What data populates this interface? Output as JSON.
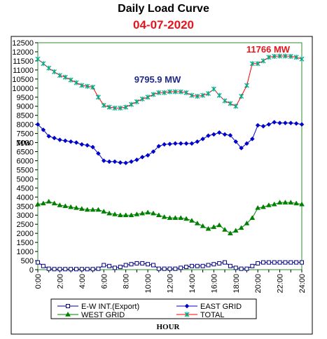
{
  "title": "Daily Load Curve",
  "subtitle": "04-07-2020",
  "chart_data": {
    "type": "line",
    "title": "Daily Load Curve",
    "subtitle": "04-07-2020",
    "xlabel": "HOUR",
    "ylabel": "MW",
    "xlim": [
      0,
      24
    ],
    "ylim": [
      0,
      12500
    ],
    "y_ticks": [
      0,
      500,
      1000,
      1500,
      2000,
      2500,
      3000,
      3500,
      4000,
      4500,
      5000,
      5500,
      6000,
      6500,
      7000,
      7500,
      8000,
      8500,
      9000,
      9500,
      10000,
      10500,
      11000,
      11500,
      12000,
      12500
    ],
    "x_ticks": [
      "0:00",
      "2:00",
      "4:00",
      "6:00",
      "8:00",
      "10:00",
      "12:00",
      "14:00",
      "16:00",
      "18:00",
      "20:00",
      "22:00",
      "24:00"
    ],
    "grid": false,
    "legend": "bottom",
    "x": [
      0,
      0.5,
      1,
      1.5,
      2,
      2.5,
      3,
      3.5,
      4,
      4.5,
      5,
      5.5,
      6,
      6.5,
      7,
      7.5,
      8,
      8.5,
      9,
      9.5,
      10,
      10.5,
      11,
      11.5,
      12,
      12.5,
      13,
      13.5,
      14,
      14.5,
      15,
      15.5,
      16,
      16.5,
      17,
      17.5,
      18,
      18.5,
      19,
      19.5,
      20,
      20.5,
      21,
      21.5,
      22,
      22.5,
      23,
      23.5,
      24
    ],
    "series": [
      {
        "name": "E-W INT.(Export)",
        "color": "#000080",
        "marker": "square",
        "values": [
          400,
          200,
          50,
          30,
          30,
          30,
          30,
          30,
          30,
          30,
          30,
          50,
          250,
          200,
          100,
          150,
          250,
          300,
          350,
          350,
          300,
          250,
          50,
          50,
          50,
          50,
          100,
          150,
          200,
          200,
          200,
          250,
          300,
          350,
          400,
          200,
          100,
          50,
          50,
          200,
          350,
          400,
          400,
          400,
          400,
          400,
          400,
          400,
          400
        ]
      },
      {
        "name": "EAST GRID",
        "color": "#0000cc",
        "marker": "diamond",
        "values": [
          8000,
          7700,
          7350,
          7250,
          7150,
          7100,
          7050,
          7000,
          6900,
          6850,
          6750,
          6400,
          6000,
          5950,
          5950,
          5900,
          5880,
          5950,
          6050,
          6200,
          6300,
          6500,
          6800,
          6900,
          6920,
          6950,
          6950,
          6950,
          6950,
          7050,
          7200,
          7380,
          7450,
          7550,
          7450,
          7400,
          7050,
          6700,
          6950,
          7200,
          7950,
          7900,
          8000,
          8120,
          8080,
          8080,
          8080,
          8050,
          8000
        ]
      },
      {
        "name": "WEST GRID",
        "color": "#008000",
        "marker": "triangle",
        "values": [
          3600,
          3650,
          3750,
          3650,
          3550,
          3500,
          3450,
          3400,
          3350,
          3300,
          3300,
          3300,
          3200,
          3100,
          3050,
          3000,
          3000,
          3000,
          3050,
          3100,
          3150,
          3100,
          3000,
          2900,
          2850,
          2850,
          2850,
          2800,
          2700,
          2550,
          2400,
          2250,
          2350,
          2450,
          2200,
          2000,
          2150,
          2300,
          2550,
          2850,
          3400,
          3450,
          3550,
          3600,
          3700,
          3700,
          3700,
          3650,
          3600
        ]
      },
      {
        "name": "TOTAL",
        "color": "#ff0000",
        "markerColor": "#00aa88",
        "marker": "star",
        "values": [
          11600,
          11350,
          11100,
          10900,
          10700,
          10600,
          10450,
          10300,
          10150,
          10100,
          10050,
          9500,
          9050,
          8950,
          8900,
          8900,
          8950,
          9100,
          9250,
          9400,
          9500,
          9650,
          9750,
          9750,
          9800,
          9800,
          9795.9,
          9750,
          9600,
          9550,
          9600,
          9700,
          9950,
          9600,
          9300,
          9150,
          9000,
          9550,
          10150,
          11350,
          11350,
          11500,
          11700,
          11750,
          11766,
          11766,
          11750,
          11700,
          11600
        ]
      }
    ],
    "annotations": [
      {
        "text": "11766 MW",
        "x": 22,
        "y": 11766,
        "color": "#e8141b"
      },
      {
        "text": "9795.9 MW",
        "x": 13,
        "y": 9795.9,
        "color": "#1f2a8a"
      }
    ]
  }
}
